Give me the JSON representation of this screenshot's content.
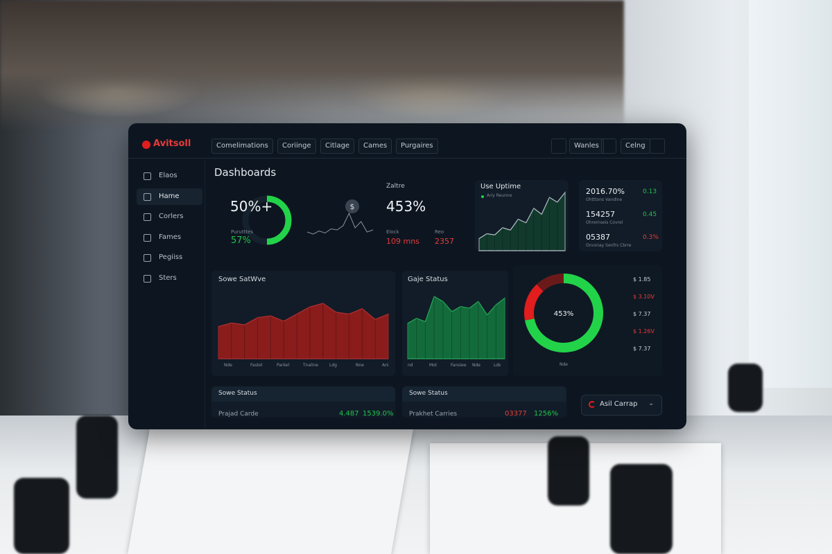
{
  "header": {
    "logo": "Avitsoll",
    "nav": [
      "Comelimations",
      "Coriinge",
      "Citlage",
      "Cames",
      "Purgaires"
    ],
    "actions": [
      "Wanles",
      "Celng"
    ]
  },
  "sidebar": [
    "Elaos",
    "Hame",
    "Corlers",
    "Fames",
    "Pegiiss",
    "Sters"
  ],
  "page_title": "Dashboards",
  "gauge_kpi": {
    "value_label": "50%+",
    "value": 50,
    "caption": "Purutttes",
    "sub_value": "57%"
  },
  "sparkline": {
    "icon": "$",
    "values": [
      12,
      10,
      13,
      11,
      15,
      14,
      18,
      30,
      16,
      22,
      12,
      14
    ]
  },
  "stat_kpi": {
    "label": "Zaltre",
    "value": "453%",
    "items": [
      {
        "label": "Elock",
        "value": "109 mns"
      },
      {
        "label": "Reo",
        "value": "2357"
      }
    ]
  },
  "uptime": {
    "title": "Use Uptime",
    "legend": "Ariy Reunne",
    "values": [
      20,
      28,
      26,
      38,
      34,
      52,
      46,
      70,
      60,
      88,
      80,
      96
    ]
  },
  "metrics": [
    {
      "value": "2016.70%",
      "caption": "Ohtttons Vandine",
      "delta": "0.13"
    },
    {
      "value": "154257",
      "caption": "Ohrernseis Covrel",
      "delta": "0.45"
    },
    {
      "value": "05387",
      "caption": "Onvsnay Senfrs Cbrre",
      "delta": "0.3%"
    }
  ],
  "sales": {
    "title": "Sowe SatWve",
    "color": "#8a1c1c",
    "values": [
      36,
      40,
      38,
      46,
      48,
      42,
      50,
      58,
      62,
      52,
      50,
      56,
      44,
      50
    ],
    "labels": [
      "Nde",
      "Fastel",
      "Parkel",
      "Tnaline",
      "Ldg",
      "Nne",
      "Ani"
    ]
  },
  "gauge_status": {
    "title": "Gaje Status",
    "color": "#136b3c",
    "values": [
      42,
      48,
      44,
      74,
      68,
      56,
      62,
      60,
      68,
      52,
      64,
      72
    ],
    "labels": [
      "nd",
      "Mot",
      "Fansiee",
      "Nde",
      "Lds"
    ]
  },
  "donut": {
    "label": "453%",
    "caption": "Nde",
    "segments": [
      {
        "value": 72,
        "color": "#22d34a"
      },
      {
        "value": 16,
        "color": "#e11d1d"
      },
      {
        "value": 12,
        "color": "#6b1a1a"
      }
    ]
  },
  "prices": [
    "$ 1.85",
    "$ 3.10V",
    "$ 7.37",
    "$ 1.26V",
    "$ 7.37"
  ],
  "footer_cards": [
    {
      "title": "Sowe Status",
      "label": "Prajad Carde",
      "value": "4.487",
      "change": "1539.0%"
    },
    {
      "title": "Sowe Status",
      "label": "Prakhet Carries",
      "value": "03377",
      "change": "1256%"
    }
  ],
  "button": "Asil Carrap"
}
